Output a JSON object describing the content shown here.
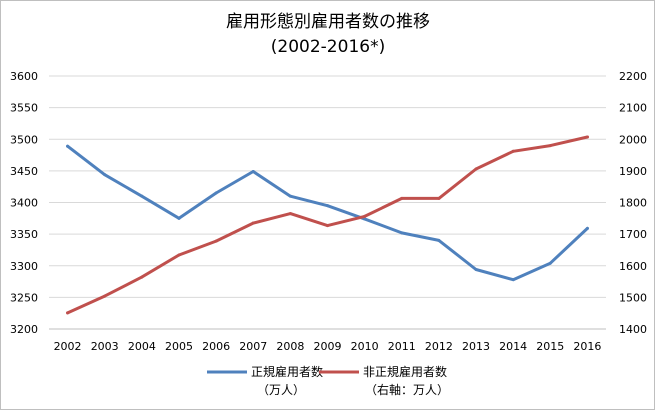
{
  "chart_data": {
    "type": "line",
    "title": "雇用形態別雇用者数の推移",
    "subtitle": "(2002-2016*)",
    "categories": [
      "2002",
      "2003",
      "2004",
      "2005",
      "2006",
      "2007",
      "2008",
      "2009",
      "2010",
      "2011",
      "2012",
      "2013",
      "2014",
      "2015",
      "2016"
    ],
    "y_left": {
      "min": 3200,
      "max": 3600,
      "step": 50
    },
    "y_right": {
      "min": 1400,
      "max": 2200,
      "step": 100
    },
    "grid": true,
    "legend_position": "bottom",
    "series": [
      {
        "name": "正規雇用者数",
        "unit_label": "（万人）",
        "axis": "left",
        "color": "#4f81bd",
        "values": [
          3489,
          3444,
          3410,
          3375,
          3415,
          3449,
          3410,
          3395,
          3374,
          3352,
          3340,
          3294,
          3278,
          3304,
          3359
        ]
      },
      {
        "name": "非正規雇用者数",
        "unit_label": "（右軸：万人）",
        "axis": "right",
        "color": "#c0504d",
        "values": [
          1451,
          1504,
          1564,
          1634,
          1678,
          1735,
          1765,
          1727,
          1756,
          1813,
          1813,
          1906,
          1962,
          1980,
          2007
        ]
      }
    ]
  }
}
